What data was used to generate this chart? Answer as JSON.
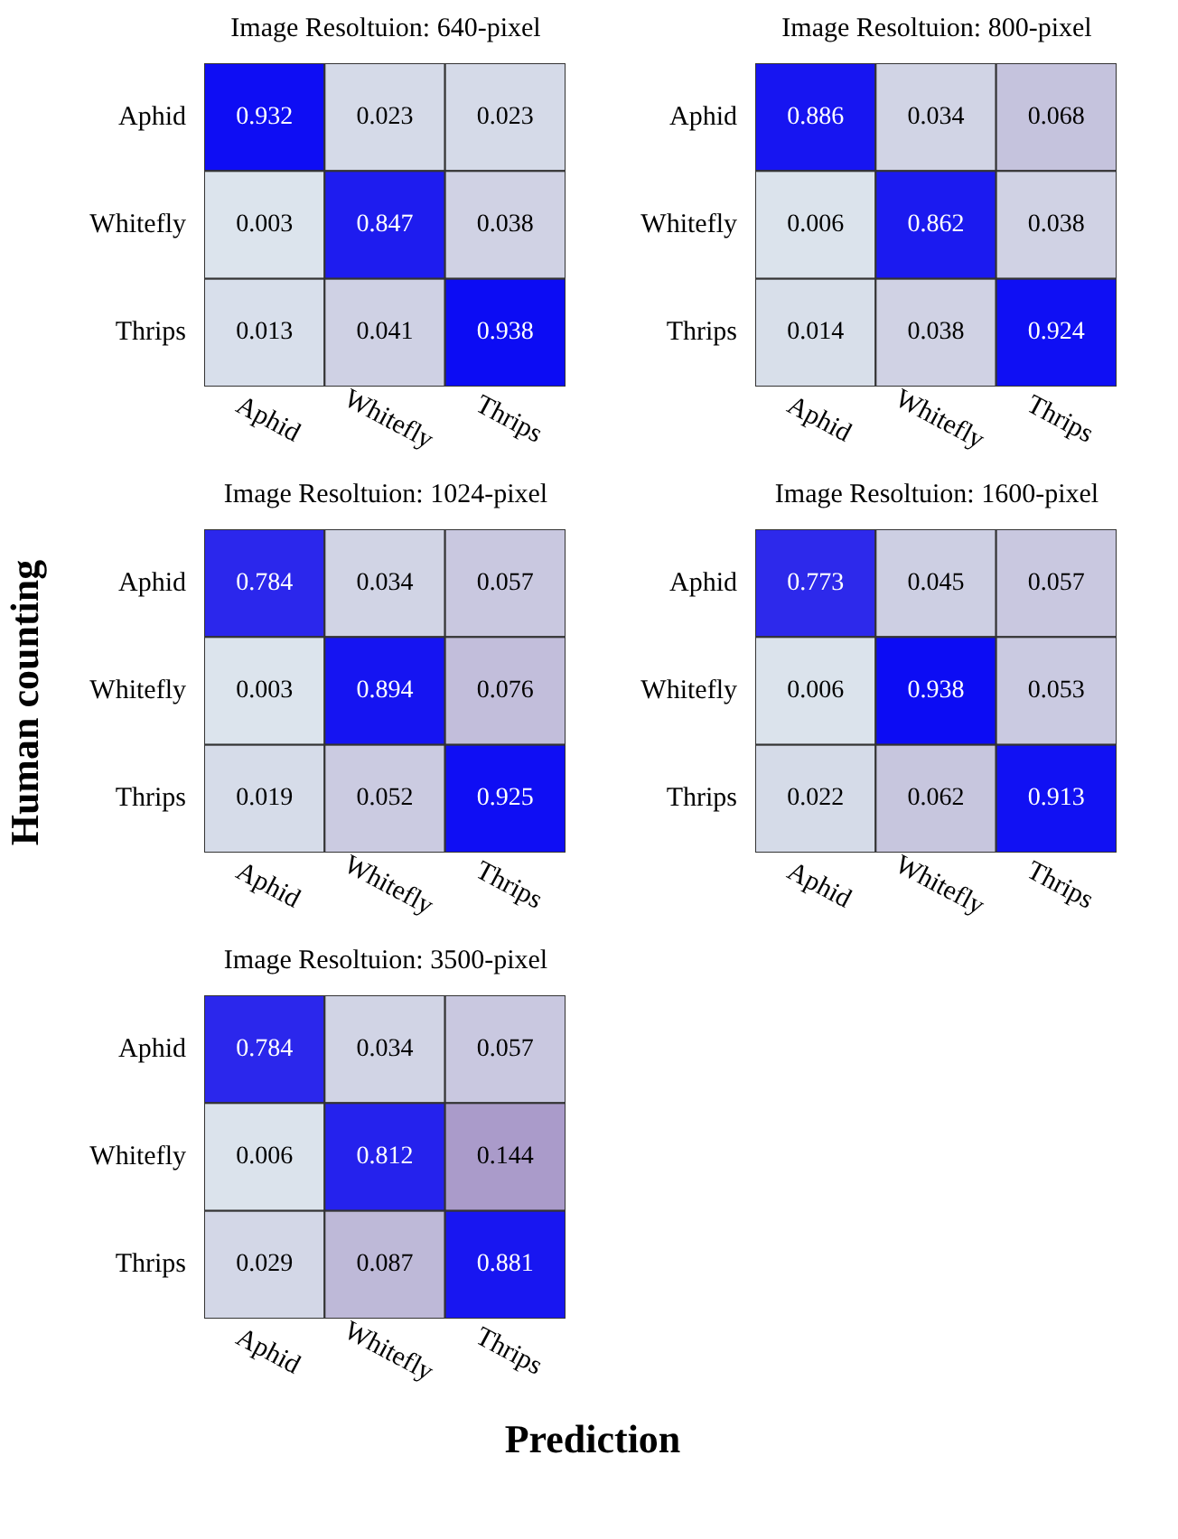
{
  "chart_data": [
    {
      "type": "heatmap",
      "title": "Image Resoltuion: 640-pixel",
      "categories": [
        "Aphid",
        "Whitefly",
        "Thrips"
      ],
      "y_categories": [
        "Aphid",
        "Whitefly",
        "Thrips"
      ],
      "data_labels": true,
      "cells": [
        [
          0.932,
          0.023,
          0.023
        ],
        [
          0.003,
          0.847,
          0.038
        ],
        [
          0.013,
          0.041,
          0.938
        ]
      ]
    },
    {
      "type": "heatmap",
      "title": "Image Resoltuion: 800-pixel",
      "categories": [
        "Aphid",
        "Whitefly",
        "Thrips"
      ],
      "y_categories": [
        "Aphid",
        "Whitefly",
        "Thrips"
      ],
      "data_labels": true,
      "cells": [
        [
          0.886,
          0.034,
          0.068
        ],
        [
          0.006,
          0.862,
          0.038
        ],
        [
          0.014,
          0.038,
          0.924
        ]
      ]
    },
    {
      "type": "heatmap",
      "title": "Image Resoltuion: 1024-pixel",
      "ylabel": "Human counting",
      "categories": [
        "Aphid",
        "Whitefly",
        "Thrips"
      ],
      "y_categories": [
        "Aphid",
        "Whitefly",
        "Thrips"
      ],
      "data_labels": true,
      "cells": [
        [
          0.784,
          0.034,
          0.057
        ],
        [
          0.003,
          0.894,
          0.076
        ],
        [
          0.019,
          0.052,
          0.925
        ]
      ]
    },
    {
      "type": "heatmap",
      "title": "Image Resoltuion: 1600-pixel",
      "categories": [
        "Aphid",
        "Whitefly",
        "Thrips"
      ],
      "y_categories": [
        "Aphid",
        "Whitefly",
        "Thrips"
      ],
      "data_labels": true,
      "cells": [
        [
          0.773,
          0.045,
          0.057
        ],
        [
          0.006,
          0.938,
          0.053
        ],
        [
          0.022,
          0.062,
          0.913
        ]
      ]
    },
    {
      "type": "heatmap",
      "title": "Image Resoltuion: 3500-pixel",
      "xlabel": "Prediction",
      "categories": [
        "Aphid",
        "Whitefly",
        "Thrips"
      ],
      "y_categories": [
        "Aphid",
        "Whitefly",
        "Thrips"
      ],
      "data_labels": true,
      "cells": [
        [
          0.784,
          0.034,
          0.057
        ],
        [
          0.006,
          0.812,
          0.144
        ],
        [
          0.029,
          0.087,
          0.881
        ]
      ]
    }
  ]
}
